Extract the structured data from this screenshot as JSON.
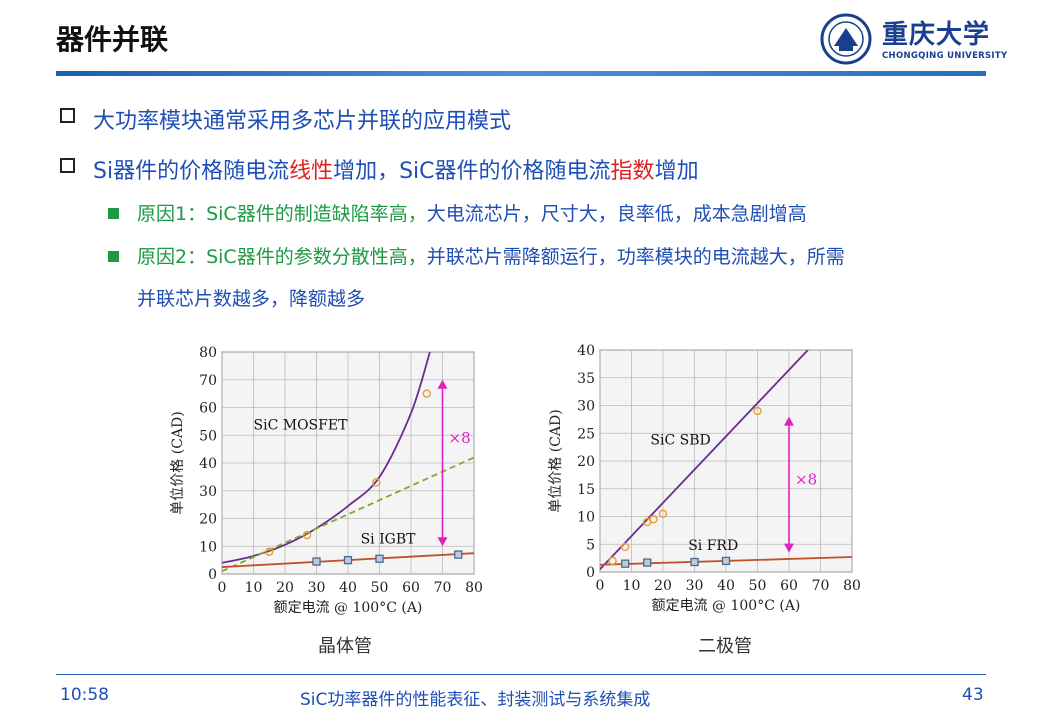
{
  "header": {
    "title": "器件并联",
    "logo_text": "重庆大学",
    "logo_sub": "CHONGQING UNIVERSITY"
  },
  "bullets": {
    "b1": "大功率模块通常采用多芯片并联的应用模式",
    "b2_p1": "Si器件的价格随电流",
    "b2_p2": "线性",
    "b2_p3": "增加，SiC器件的价格随电流",
    "b2_p4": "指数",
    "b2_p5": "增加",
    "r1_label": "原因1：SiC器件的制造缺陷率高，",
    "r1_text": "大电流芯片，尺寸大，良率低，成本急剧增高",
    "r2_label": "原因2：SiC器件的参数分散性高，",
    "r2_text": "并联芯片需降额运行，功率模块的电流越大，所需",
    "r2_text2": "并联芯片数越多，降额越多"
  },
  "chart_data": [
    {
      "type": "line",
      "caption": "晶体管",
      "xlabel": "额定电流 @ 100°C (A)",
      "ylabel": "单位价格 (CAD)",
      "xlim": [
        0,
        80
      ],
      "ylim": [
        0,
        80
      ],
      "xticks": [
        0,
        10,
        20,
        30,
        40,
        50,
        60,
        70,
        80
      ],
      "yticks": [
        0,
        10,
        20,
        30,
        40,
        50,
        60,
        70,
        80
      ],
      "grid": true,
      "series": [
        {
          "name": "SiC MOSFET",
          "style": "curve",
          "color": "#6a2c8e",
          "x": [
            0,
            10,
            20,
            30,
            40,
            50,
            60,
            66
          ],
          "y": [
            4,
            6.5,
            10.5,
            16.5,
            24.5,
            35,
            58,
            80
          ]
        },
        {
          "style": "dashed",
          "color": "#7aab2f",
          "x": [
            0,
            80
          ],
          "y": [
            1,
            42
          ]
        },
        {
          "name": "Si IGBT",
          "style": "line",
          "color": "#c0502a",
          "x": [
            0,
            80
          ],
          "y": [
            2.5,
            7.5
          ]
        },
        {
          "style": "points-circle",
          "color": "#e8a03a",
          "x": [
            15,
            27,
            49,
            65
          ],
          "y": [
            8,
            14,
            33,
            65
          ]
        },
        {
          "style": "points-square",
          "color": "#4a6a8a",
          "x": [
            30,
            40,
            50,
            75
          ],
          "y": [
            4.5,
            5,
            5.5,
            7
          ]
        }
      ],
      "annotation": {
        "text": "×8",
        "x": 70,
        "y_top": 70,
        "y_bottom": 10,
        "color": "#e020c0"
      }
    },
    {
      "type": "line",
      "caption": "二极管",
      "xlabel": "额定电流 @ 100°C (A)",
      "ylabel": "单位价格 (CAD)",
      "xlim": [
        0,
        80
      ],
      "ylim": [
        0,
        40
      ],
      "xticks": [
        0,
        10,
        20,
        30,
        40,
        50,
        60,
        70,
        80
      ],
      "yticks": [
        0,
        5,
        10,
        15,
        20,
        25,
        30,
        35,
        40
      ],
      "grid": true,
      "series": [
        {
          "name": "SiC SBD",
          "style": "line",
          "color": "#6a2c8e",
          "x": [
            0,
            66
          ],
          "y": [
            0.5,
            40
          ]
        },
        {
          "name": "Si FRD",
          "style": "line",
          "color": "#c0502a",
          "x": [
            0,
            80
          ],
          "y": [
            1.3,
            2.7
          ]
        },
        {
          "style": "points-circle",
          "color": "#e8a03a",
          "x": [
            4,
            8,
            15,
            17,
            20,
            50
          ],
          "y": [
            2,
            4.5,
            9,
            9.5,
            10.5,
            29
          ]
        },
        {
          "style": "points-square",
          "color": "#4a6a8a",
          "x": [
            8,
            15,
            30,
            40
          ],
          "y": [
            1.5,
            1.7,
            1.8,
            2
          ]
        }
      ],
      "annotation": {
        "text": "×8",
        "x": 60,
        "y_top": 28,
        "y_bottom": 3.5,
        "color": "#e020c0"
      }
    }
  ],
  "footer": {
    "time": "10:58",
    "course": "SiC功率器件的性能表征、封装测试与系统集成",
    "page": "43"
  }
}
